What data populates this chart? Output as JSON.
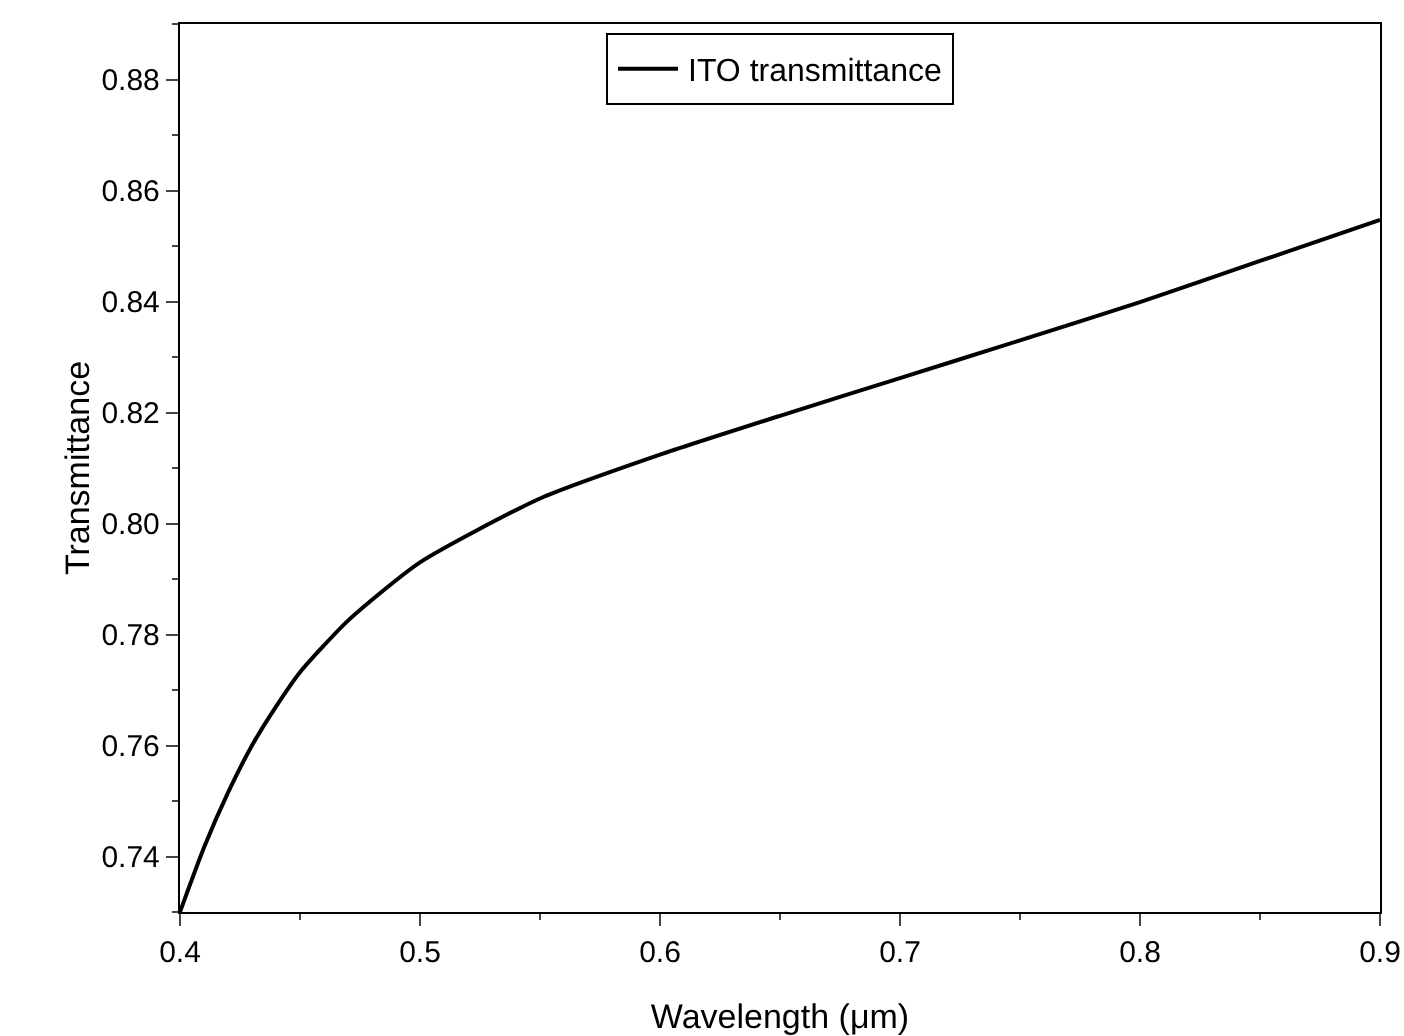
{
  "chart_data": {
    "type": "line",
    "xlabel": "Wavelength (μm)",
    "ylabel": "Transmittance",
    "x": [
      0.4,
      0.41,
      0.42,
      0.43,
      0.44,
      0.45,
      0.47,
      0.5,
      0.55,
      0.6,
      0.65,
      0.7,
      0.75,
      0.8,
      0.85,
      0.9
    ],
    "series": [
      {
        "name": "ITO transmittance",
        "color": "#000000",
        "values": [
          0.73,
          0.7416,
          0.7515,
          0.76,
          0.767,
          0.7732,
          0.7825,
          0.793,
          0.8045,
          0.8124,
          0.8194,
          0.8262,
          0.833,
          0.8399,
          0.8473,
          0.8547
        ]
      }
    ],
    "xlim": [
      0.4,
      0.9
    ],
    "xticks": [
      0.4,
      0.5,
      0.6,
      0.7,
      0.8,
      0.9
    ],
    "ylim": [
      0.73,
      0.89
    ],
    "yticks": [
      {
        "value": 0.74,
        "label": "0.74"
      },
      {
        "value": 0.76,
        "label": "0.76"
      },
      {
        "value": 0.78,
        "label": "0.78"
      },
      {
        "value": 0.8,
        "label": "0.80"
      },
      {
        "value": 0.82,
        "label": "0.82"
      },
      {
        "value": 0.84,
        "label": "0.84"
      },
      {
        "value": 0.86,
        "label": "0.86"
      },
      {
        "value": 0.88,
        "label": "0.88"
      }
    ],
    "grid": false,
    "legend": "top",
    "marker": "none",
    "line_style": "solid"
  }
}
